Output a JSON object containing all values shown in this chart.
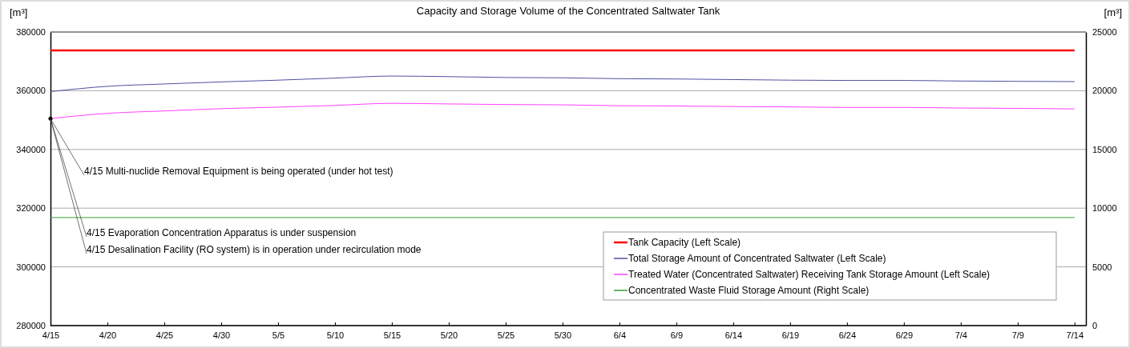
{
  "chart_data": {
    "type": "line",
    "title": "Capacity and Storage Volume of the Concentrated Saltwater Tank",
    "ylabel": "[m³]",
    "y2label": "[m³]",
    "x": [
      "--04-15",
      "--04-20",
      "--04-25",
      "--04-30",
      "--05-05",
      "--05-10",
      "--05-15",
      "--05-20",
      "--05-25",
      "--05-30",
      "--06-04",
      "--06-09",
      "--06-14",
      "--06-19",
      "--06-24",
      "--06-29",
      "--07-04",
      "--07-09",
      "--07-14"
    ],
    "series": [
      {
        "name": "Tank Capacity (Left Scale)",
        "color": "#ff0000",
        "values": [
          373700,
          373700,
          373700,
          373700,
          373700,
          373700,
          373700,
          373700,
          373700,
          373700,
          373700,
          373700,
          373700,
          373700,
          373700,
          373700,
          373700,
          373700,
          373700
        ]
      },
      {
        "name": "Total Storage Amount of Concentrated Saltwater (Left Scale)",
        "color": "#5050a0",
        "values": [
          359700,
          361500,
          362300,
          363000,
          363600,
          364300,
          365000,
          364800,
          364500,
          364400,
          364100,
          364000,
          363800,
          363600,
          363500,
          363500,
          363300,
          363200,
          363100
        ]
      },
      {
        "name": "Treated Water (Concentrated Saltwater) Receiving Tank Storage Amount (Left Scale)",
        "color": "#ff40ff",
        "values": [
          350500,
          352300,
          353100,
          353900,
          354400,
          355000,
          355700,
          355500,
          355300,
          355200,
          354900,
          354800,
          354600,
          354500,
          354300,
          354300,
          354100,
          354000,
          353800
        ]
      },
      {
        "name": "Concentrated Waste Fluid Storage Amount (Right Scale)",
        "color": "#33a033",
        "axis": "y2",
        "values": [
          9200,
          9200,
          9200,
          9200,
          9200,
          9200,
          9200,
          9200,
          9200,
          9200,
          9200,
          9200,
          9200,
          9200,
          9200,
          9200,
          9200,
          9200,
          9200
        ]
      }
    ],
    "xlim": [
      "--04-15",
      "--07-15"
    ],
    "xticks": [
      {
        "value": "--04-15",
        "label": "4/15"
      },
      {
        "value": "--04-20",
        "label": "4/20"
      },
      {
        "value": "--04-25",
        "label": "4/25"
      },
      {
        "value": "--04-30",
        "label": "4/30"
      },
      {
        "value": "--05-05",
        "label": "5/5"
      },
      {
        "value": "--05-10",
        "label": "5/10"
      },
      {
        "value": "--05-15",
        "label": "5/15"
      },
      {
        "value": "--05-20",
        "label": "5/20"
      },
      {
        "value": "--05-25",
        "label": "5/25"
      },
      {
        "value": "--05-30",
        "label": "5/30"
      },
      {
        "value": "--06-04",
        "label": "6/4"
      },
      {
        "value": "--06-09",
        "label": "6/9"
      },
      {
        "value": "--06-14",
        "label": "6/14"
      },
      {
        "value": "--06-19",
        "label": "6/19"
      },
      {
        "value": "--06-24",
        "label": "6/24"
      },
      {
        "value": "--06-29",
        "label": "6/29"
      },
      {
        "value": "--07-04",
        "label": "7/4"
      },
      {
        "value": "--07-09",
        "label": "7/9"
      },
      {
        "value": "--07-14",
        "label": "7/14"
      }
    ],
    "ylim": [
      280000,
      380000
    ],
    "yticks": [
      280000,
      300000,
      320000,
      340000,
      360000,
      380000
    ],
    "y2lim": [
      0,
      25000
    ],
    "y2ticks": [
      0,
      5000,
      10000,
      15000,
      20000,
      25000
    ],
    "grid": "y",
    "legend": "bottom right",
    "marker": "none",
    "line_style": "solid",
    "annotations": [
      {
        "text": "4/15 Multi-nuclide Removal Equipment is being operated (under hot test)",
        "x": "--04-15",
        "y": 350500
      },
      {
        "text": "4/15 Evaporation Concentration Apparatus is under suspension",
        "x": "--04-15",
        "y": 350500
      },
      {
        "text": "4/15 Desalination Facility (RO system) is in operation under recirculation mode",
        "x": "--04-15",
        "y": 350500
      }
    ]
  }
}
